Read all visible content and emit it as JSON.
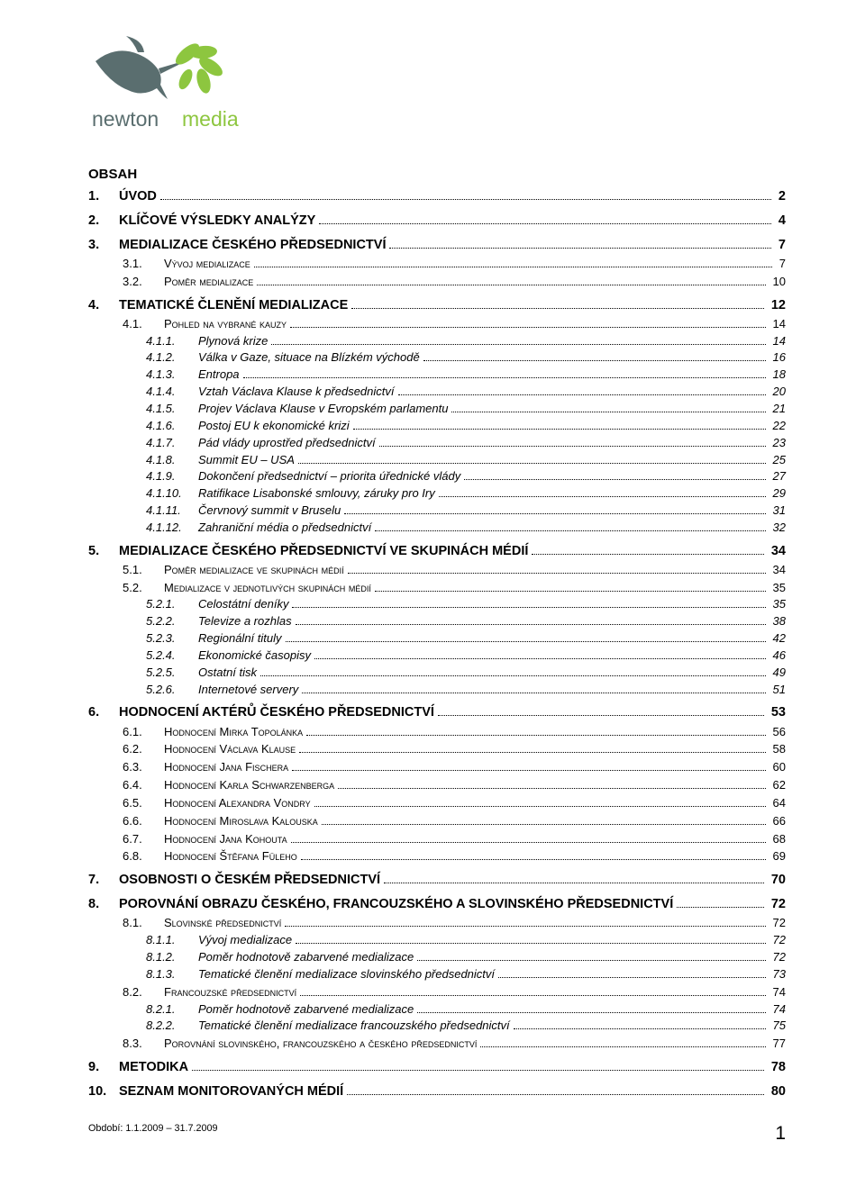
{
  "logo": {
    "brand_text": "newton media",
    "bird_color": "#5a6e6f",
    "leaf_color": "#8dc63f"
  },
  "heading": "OBSAH",
  "toc": [
    {
      "level": 1,
      "num": "1.",
      "label": "ÚVOD",
      "page": "2"
    },
    {
      "level": 1,
      "num": "2.",
      "label": "KLÍČOVÉ VÝSLEDKY ANALÝZY",
      "page": "4"
    },
    {
      "level": 1,
      "num": "3.",
      "label": "MEDIALIZACE ČESKÉHO PŘEDSEDNICTVÍ",
      "page": "7"
    },
    {
      "level": 2,
      "num": "3.1.",
      "label": "Vývoj medializace",
      "smallcaps": true,
      "page": "7"
    },
    {
      "level": 2,
      "num": "3.2.",
      "label": "Poměr medializace",
      "smallcaps": true,
      "page": "10"
    },
    {
      "level": 1,
      "num": "4.",
      "label": "TEMATICKÉ ČLENĚNÍ MEDIALIZACE",
      "page": "12"
    },
    {
      "level": 2,
      "num": "4.1.",
      "label": "Pohled na vybrané kauzy",
      "smallcaps": true,
      "page": "14"
    },
    {
      "level": 3,
      "num": "4.1.1.",
      "label": "Plynová krize",
      "page": "14"
    },
    {
      "level": 3,
      "num": "4.1.2.",
      "label": "Válka v Gaze, situace na Blízkém východě",
      "page": "16"
    },
    {
      "level": 3,
      "num": "4.1.3.",
      "label": "Entropa",
      "page": "18"
    },
    {
      "level": 3,
      "num": "4.1.4.",
      "label": "Vztah Václava Klause k předsednictví",
      "page": "20"
    },
    {
      "level": 3,
      "num": "4.1.5.",
      "label": "Projev Václava Klause v Evropském parlamentu",
      "page": "21"
    },
    {
      "level": 3,
      "num": "4.1.6.",
      "label": "Postoj EU k ekonomické krizi",
      "page": "22"
    },
    {
      "level": 3,
      "num": "4.1.7.",
      "label": "Pád vlády uprostřed předsednictví",
      "page": "23"
    },
    {
      "level": 3,
      "num": "4.1.8.",
      "label": "Summit EU – USA",
      "page": "25"
    },
    {
      "level": 3,
      "num": "4.1.9.",
      "label": "Dokončení předsednictví – priorita úřednické vlády",
      "page": "27"
    },
    {
      "level": 3,
      "num": "4.1.10.",
      "label": "Ratifikace Lisabonské smlouvy, záruky pro Iry",
      "page": "29"
    },
    {
      "level": 3,
      "num": "4.1.11.",
      "label": "Červnový summit v Bruselu",
      "page": "31"
    },
    {
      "level": 3,
      "num": "4.1.12.",
      "label": "Zahraniční média o předsednictví",
      "page": "32"
    },
    {
      "level": 1,
      "num": "5.",
      "label": "MEDIALIZACE ČESKÉHO PŘEDSEDNICTVÍ VE SKUPINÁCH MÉDIÍ",
      "page": "34"
    },
    {
      "level": 2,
      "num": "5.1.",
      "label": "Poměr medializace ve skupinách médií",
      "smallcaps": true,
      "page": "34"
    },
    {
      "level": 2,
      "num": "5.2.",
      "label": "Medializace v jednotlivých skupinách médií",
      "smallcaps": true,
      "page": "35"
    },
    {
      "level": 3,
      "num": "5.2.1.",
      "label": "Celostátní deníky",
      "page": "35"
    },
    {
      "level": 3,
      "num": "5.2.2.",
      "label": "Televize a rozhlas",
      "page": "38"
    },
    {
      "level": 3,
      "num": "5.2.3.",
      "label": "Regionální tituly",
      "page": "42"
    },
    {
      "level": 3,
      "num": "5.2.4.",
      "label": "Ekonomické časopisy",
      "page": "46"
    },
    {
      "level": 3,
      "num": "5.2.5.",
      "label": "Ostatní tisk",
      "page": "49"
    },
    {
      "level": 3,
      "num": "5.2.6.",
      "label": "Internetové servery",
      "page": "51"
    },
    {
      "level": 1,
      "num": "6.",
      "label": "HODNOCENÍ AKTÉRŮ ČESKÉHO PŘEDSEDNICTVÍ",
      "page": "53"
    },
    {
      "level": 2,
      "num": "6.1.",
      "label": "Hodnocení Mirka Topolánka",
      "smallcaps": true,
      "page": "56"
    },
    {
      "level": 2,
      "num": "6.2.",
      "label": "Hodnocení Václava Klause",
      "smallcaps": true,
      "page": "58"
    },
    {
      "level": 2,
      "num": "6.3.",
      "label": "Hodnocení Jana Fischera",
      "smallcaps": true,
      "page": "60"
    },
    {
      "level": 2,
      "num": "6.4.",
      "label": "Hodnocení Karla Schwarzenberga",
      "smallcaps": true,
      "page": "62"
    },
    {
      "level": 2,
      "num": "6.5.",
      "label": "Hodnocení Alexandra Vondry",
      "smallcaps": true,
      "page": "64"
    },
    {
      "level": 2,
      "num": "6.6.",
      "label": "Hodnocení Miroslava Kalouska",
      "smallcaps": true,
      "page": "66"
    },
    {
      "level": 2,
      "num": "6.7.",
      "label": "Hodnocení Jana Kohouta",
      "smallcaps": true,
      "page": "68"
    },
    {
      "level": 2,
      "num": "6.8.",
      "label": "Hodnocení Štěfana Füleho",
      "smallcaps": true,
      "page": "69"
    },
    {
      "level": 1,
      "num": "7.",
      "label": "OSOBNOSTI O ČESKÉM PŘEDSEDNICTVÍ",
      "page": "70"
    },
    {
      "level": 1,
      "num": "8.",
      "label": "POROVNÁNÍ OBRAZU ČESKÉHO, FRANCOUZSKÉHO A SLOVINSKÉHO PŘEDSEDNICTVÍ",
      "page": "72"
    },
    {
      "level": 2,
      "num": "8.1.",
      "label": "Slovinské předsednictví",
      "smallcaps": true,
      "page": "72"
    },
    {
      "level": 3,
      "num": "8.1.1.",
      "label": "Vývoj medializace",
      "page": "72"
    },
    {
      "level": 3,
      "num": "8.1.2.",
      "label": "Poměr hodnotově zabarvené medializace",
      "page": "72"
    },
    {
      "level": 3,
      "num": "8.1.3.",
      "label": "Tematické členění medializace slovinského předsednictví",
      "page": "73"
    },
    {
      "level": 2,
      "num": "8.2.",
      "label": "Francouzské předsednictví",
      "smallcaps": true,
      "page": "74"
    },
    {
      "level": 3,
      "num": "8.2.1.",
      "label": "Poměr hodnotově zabarvené medializace",
      "page": "74"
    },
    {
      "level": 3,
      "num": "8.2.2.",
      "label": "Tematické členění medializace francouzského předsednictví",
      "page": "75"
    },
    {
      "level": 2,
      "num": "8.3.",
      "label": "Porovnání slovinského, francouzského a českého předsednictví",
      "smallcaps": true,
      "page": "77"
    },
    {
      "level": 1,
      "num": "9.",
      "label": "METODIKA",
      "page": "78"
    },
    {
      "level": 1,
      "num": "10.",
      "label": "SEZNAM MONITOROVANÝCH MÉDIÍ",
      "page": "80"
    }
  ],
  "footer": {
    "period": "Období: 1.1.2009 – 31.7.2009",
    "page_number": "1"
  }
}
